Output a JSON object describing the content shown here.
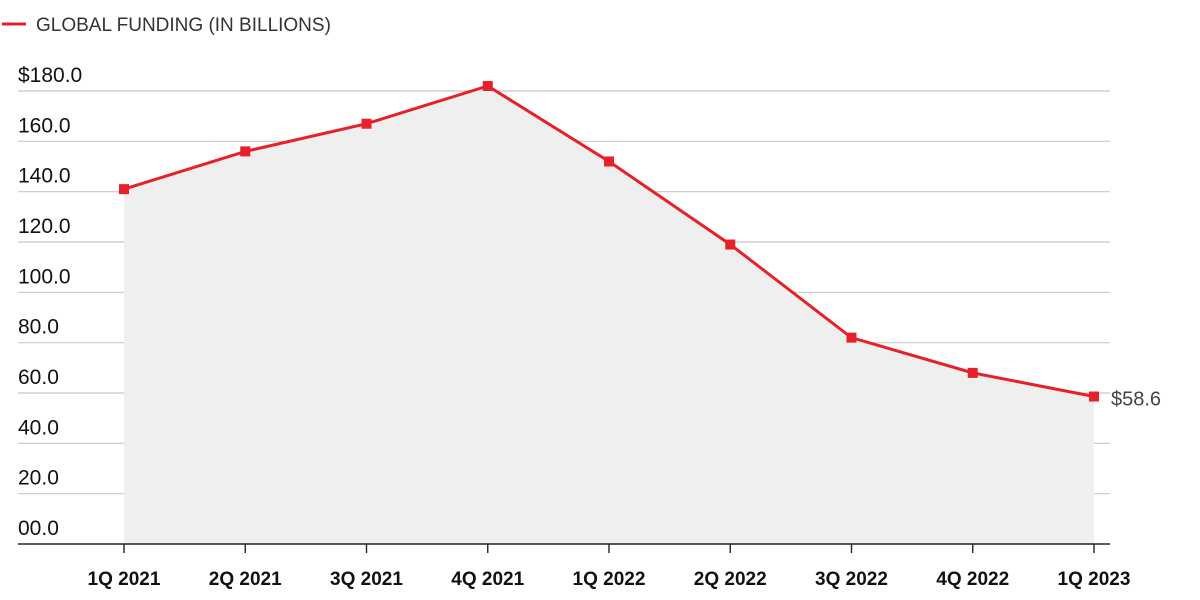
{
  "colors": {
    "series": "#e8202a",
    "area": "#efefef",
    "grid": "#c8c8c8",
    "axis": "#222222"
  },
  "chart_data": {
    "type": "area",
    "grid": true,
    "legend_position": "top-left",
    "categories": [
      "1Q 2021",
      "2Q 2021",
      "3Q 2021",
      "4Q 2021",
      "1Q 2022",
      "2Q 2022",
      "3Q 2022",
      "4Q 2022",
      "1Q 2023"
    ],
    "series": [
      {
        "name": "GLOBAL FUNDING (IN BILLIONS)",
        "values": [
          141.0,
          156.0,
          167.0,
          182.0,
          152.0,
          119.0,
          82.0,
          68.0,
          58.6
        ]
      }
    ],
    "ylim": [
      0,
      180
    ],
    "yticks": [
      0,
      20,
      40,
      60,
      80,
      100,
      120,
      140,
      160,
      180
    ],
    "ytick_labels": [
      "00.0",
      "20.0",
      "40.0",
      "60.0",
      "80.0",
      "100.0",
      "120.0",
      "140.0",
      "160.0",
      "$180.0"
    ],
    "end_label": "$58.6",
    "xlabel": "",
    "ylabel": ""
  }
}
